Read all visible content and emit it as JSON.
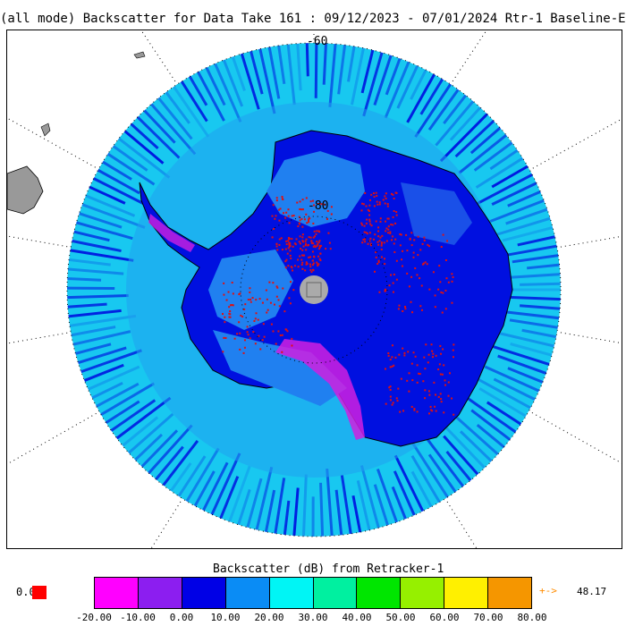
{
  "title": "(all mode) Backscatter for Data Take 161 : 09/12/2023 - 07/01/2024 Rtr-1 Baseline-E",
  "map": {
    "lat_labels": [
      "-60",
      "-80"
    ],
    "colors": {
      "background_ocean_ring": "#18c8f0",
      "ice_sheet": "#0010e0",
      "ice_light": "#2080f0",
      "high_backscatter": "#e01010",
      "margin_magenta": "#d020e0",
      "pole_hole": "#aaaaaa",
      "land_outside": "#999999"
    }
  },
  "legend": {
    "title": "Backscatter (dB) from Retracker-1",
    "zero_label": "0.0",
    "zero_color": "#ff0000",
    "overflow_arrow": "+->",
    "overflow_value": "48.17",
    "bins": [
      {
        "color": "#ff00ff"
      },
      {
        "color": "#8c1ef0"
      },
      {
        "color": "#0000e6"
      },
      {
        "color": "#0a8cf5"
      },
      {
        "color": "#00f5f5"
      },
      {
        "color": "#00f0a0"
      },
      {
        "color": "#00e600"
      },
      {
        "color": "#96f000"
      },
      {
        "color": "#fff000"
      },
      {
        "color": "#f59600"
      }
    ],
    "ticks": [
      "-20.00",
      "-10.00",
      "0.00",
      "10.00",
      "20.00",
      "30.00",
      "40.00",
      "50.00",
      "60.00",
      "70.00",
      "80.00"
    ]
  }
}
